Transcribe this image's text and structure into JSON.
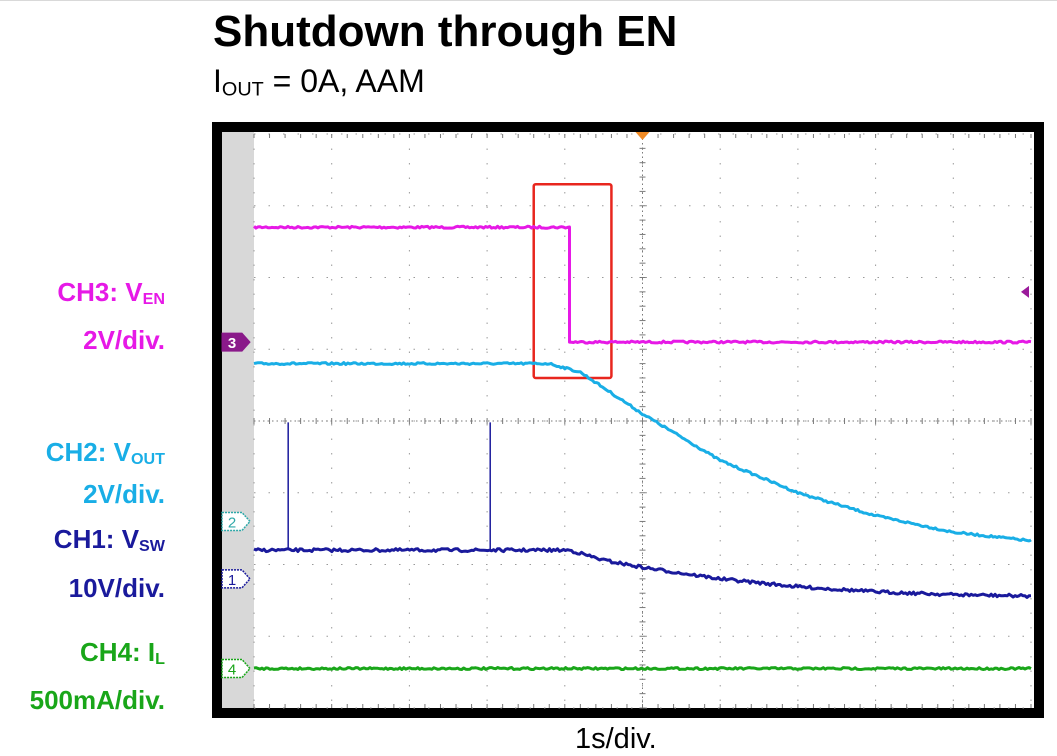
{
  "title": "Shutdown through EN",
  "subtitle": {
    "main": "I",
    "sub": "OUT",
    "rest": " = 0A, AAM"
  },
  "footer": "1s/div.",
  "channels": [
    {
      "id": "ch3",
      "marker": "3",
      "name": "CH3: V",
      "sub": "EN",
      "scale": "2V/div.",
      "color": "#e619e6"
    },
    {
      "id": "ch2",
      "marker": "2",
      "name": "CH2: V",
      "sub": "OUT",
      "scale": "2V/div.",
      "color": "#19aee6"
    },
    {
      "id": "ch1",
      "marker": "1",
      "name": "CH1: V",
      "sub": "SW",
      "scale": "10V/div.",
      "color": "#1a1a9c"
    },
    {
      "id": "ch4",
      "marker": "4",
      "name": "CH4: I",
      "sub": "L",
      "scale": "500mA/div.",
      "color": "#19a619"
    }
  ],
  "chart_data": {
    "type": "line",
    "x_unit": "div",
    "y_unit": "div",
    "x_range": [
      0,
      10
    ],
    "y_range": [
      0,
      8
    ],
    "grid": true,
    "trigger_marker_x": 5,
    "highlight_box": {
      "x": [
        3.6,
        4.6
      ],
      "y": [
        4.6,
        7.3
      ]
    },
    "series": [
      {
        "id": "ch3",
        "x": [
          0,
          4.06,
          4.06,
          10
        ],
        "y": [
          6.7,
          6.7,
          5.1,
          5.1
        ]
      },
      {
        "id": "ch2",
        "x": [
          0,
          3.8,
          4.2,
          5,
          6,
          7,
          8,
          9,
          10
        ],
        "y": [
          4.8,
          4.8,
          4.68,
          4.1,
          3.45,
          3.0,
          2.68,
          2.45,
          2.33
        ]
      },
      {
        "id": "ch1",
        "x": [
          0,
          4.06,
          4.5,
          5,
          6,
          7,
          8,
          9,
          10
        ],
        "y": [
          2.2,
          2.2,
          2.06,
          1.96,
          1.8,
          1.69,
          1.62,
          1.58,
          1.56
        ]
      },
      {
        "id": "ch4",
        "x": [
          0,
          10
        ],
        "y": [
          0.55,
          0.55
        ]
      }
    ],
    "spikes": [
      {
        "series": "ch1",
        "x": [
          0.44,
          3.04
        ],
        "y": [
          3.98,
          3.98
        ]
      }
    ]
  }
}
